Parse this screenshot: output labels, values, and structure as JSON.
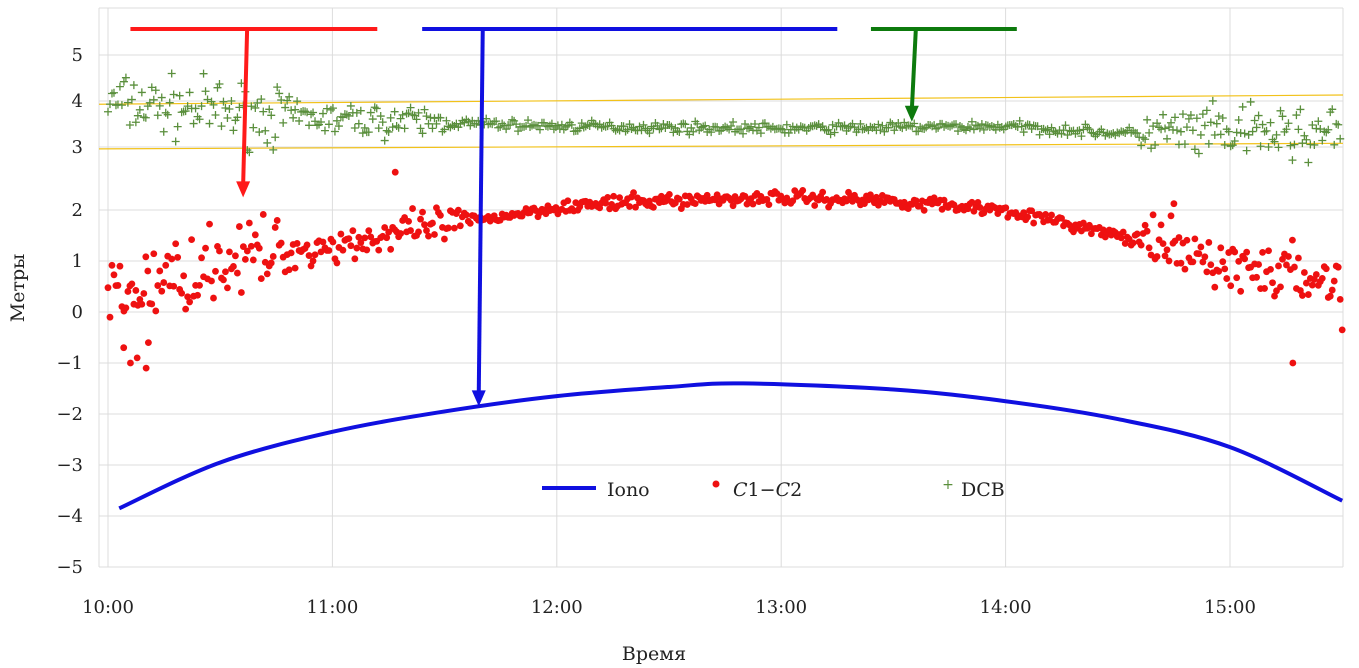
{
  "chart_data": {
    "type": "scatter",
    "xlabel": "Время",
    "ylabel": "Метры",
    "x_ticks": [
      "10:00",
      "11:00",
      "12:00",
      "13:00",
      "14:00",
      "15:00"
    ],
    "x_range_hours": [
      10.0,
      15.5
    ],
    "y_segments": [
      {
        "ticks": [
          -5,
          -4,
          -3,
          -2,
          -1,
          0,
          1,
          2
        ]
      },
      {
        "ticks": [
          3,
          4,
          5
        ]
      }
    ],
    "grid": true,
    "legend_position": "bottom-center",
    "series": [
      {
        "name": "Iono",
        "kind": "line",
        "color": "#1010e0",
        "x": [
          10.05,
          10.5,
          11.0,
          11.5,
          12.0,
          12.5,
          12.83,
          13.5,
          14.0,
          14.5,
          15.0,
          15.5
        ],
        "y": [
          -3.85,
          -2.95,
          -2.35,
          -1.95,
          -1.65,
          -1.47,
          -1.4,
          -1.52,
          -1.75,
          -2.1,
          -2.65,
          -3.7
        ]
      },
      {
        "name": "C1−C2",
        "name_parts": [
          "C",
          "1−",
          "C",
          "2"
        ],
        "kind": "points",
        "color": "#ee1111",
        "trend_x": [
          10.05,
          10.5,
          11.0,
          11.5,
          12.0,
          12.5,
          13.0,
          13.5,
          14.0,
          14.5,
          15.0,
          15.5
        ],
        "trend_y": [
          0.3,
          1.0,
          1.3,
          1.7,
          2.05,
          2.15,
          2.2,
          2.15,
          2.0,
          1.5,
          0.9,
          0.6
        ],
        "outliers": [
          {
            "x": 10.07,
            "y": -0.7
          },
          {
            "x": 10.1,
            "y": -1.0
          },
          {
            "x": 10.13,
            "y": -0.9
          },
          {
            "x": 10.17,
            "y": -1.1
          },
          {
            "x": 10.18,
            "y": -0.6
          },
          {
            "x": 11.28,
            "y": 2.6
          },
          {
            "x": 15.28,
            "y": -1.0
          },
          {
            "x": 15.5,
            "y": -0.35
          },
          {
            "x": 14.75,
            "y": 2.1
          }
        ]
      },
      {
        "name": "DCB",
        "kind": "plus",
        "color": "#5a8f3c",
        "trend_x": [
          10.05,
          11.0,
          12.0,
          13.0,
          14.0,
          14.5,
          15.5
        ],
        "trend_y": [
          3.95,
          3.6,
          3.45,
          3.4,
          3.45,
          3.3,
          3.3
        ]
      }
    ],
    "reference_lines": [
      {
        "color": "#f2c21a",
        "y_start": 3.93,
        "y_end": 4.13
      },
      {
        "color": "#f2c21a",
        "y_start": 2.97,
        "y_end": 3.08
      }
    ],
    "annotations": [
      {
        "color": "#ff1a1a",
        "bar_x": [
          10.1,
          11.2
        ],
        "bar_y": 5.6,
        "arrow_x": 10.62,
        "arrow_to_y": 2.2
      },
      {
        "color": "#1010e0",
        "bar_x": [
          11.4,
          13.25
        ],
        "bar_y": 5.6,
        "arrow_x": 11.67,
        "arrow_to_y": -1.85
      },
      {
        "color": "#0d7a0d",
        "bar_x": [
          13.4,
          14.05
        ],
        "bar_y": 5.6,
        "arrow_x": 13.6,
        "arrow_to_y": 3.55
      }
    ]
  }
}
